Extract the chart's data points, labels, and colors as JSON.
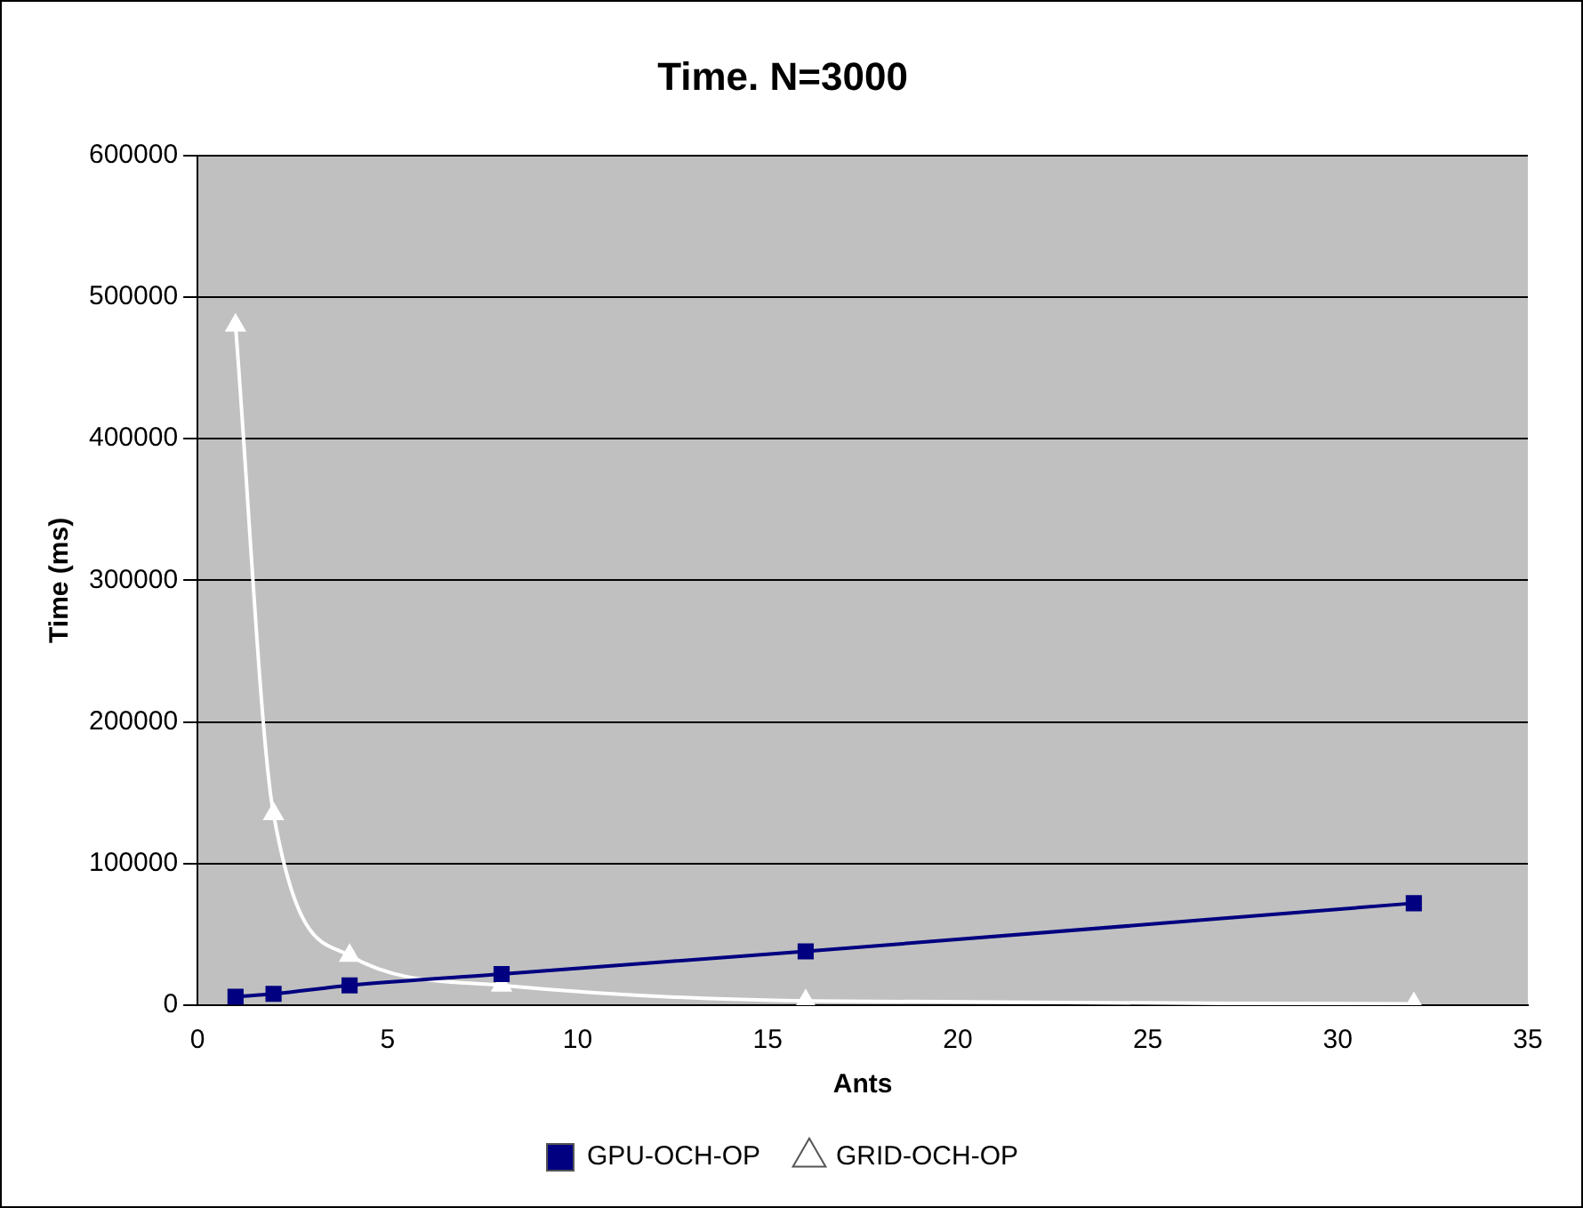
{
  "chart_data": {
    "type": "line",
    "title": "Time. N=3000",
    "xlabel": "Ants",
    "ylabel": "Time (ms)",
    "x": [
      1,
      2,
      4,
      8,
      16,
      32
    ],
    "series": [
      {
        "name": "GPU-OCH-OP",
        "color": "#000080",
        "marker": "square",
        "values": [
          6000,
          8000,
          14000,
          22000,
          38000,
          72000
        ]
      },
      {
        "name": "GRID-OCH-OP",
        "color": "#ffffff",
        "marker": "triangle",
        "values": [
          480000,
          135000,
          35000,
          14000,
          3000,
          1000
        ]
      }
    ],
    "xlim": [
      0,
      35
    ],
    "xticks": [
      0,
      5,
      10,
      15,
      20,
      25,
      30,
      35
    ],
    "ylim": [
      0,
      600000
    ],
    "yticks": [
      0,
      100000,
      200000,
      300000,
      400000,
      500000,
      600000
    ],
    "grid": "y",
    "legend": "bottom",
    "line_style": "solid"
  }
}
